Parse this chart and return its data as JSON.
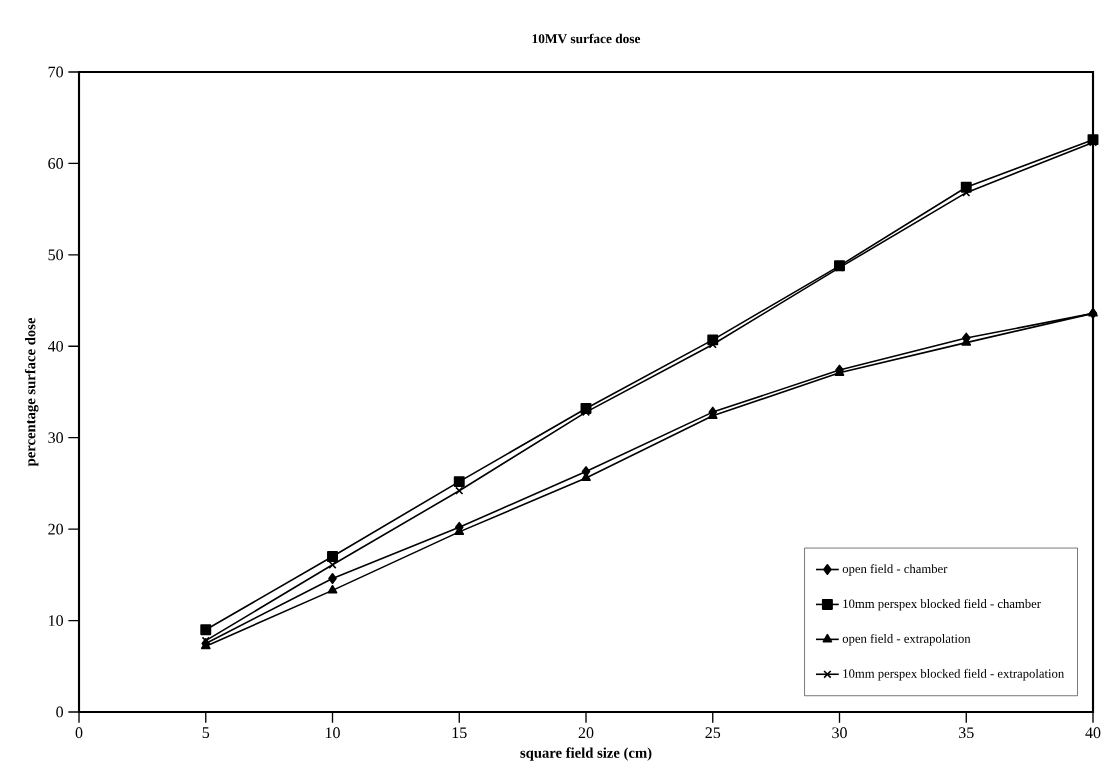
{
  "chart_data": {
    "type": "line",
    "title": "10MV surface dose",
    "xlabel": "square field size (cm)",
    "ylabel": "percentage surface dose",
    "x": [
      5,
      10,
      15,
      20,
      25,
      30,
      35,
      40
    ],
    "series": [
      {
        "name": "open field - chamber",
        "color": "#000000",
        "marker": "diamond",
        "values": [
          7.5,
          14.6,
          20.2,
          26.3,
          32.8,
          37.4,
          40.9,
          43.6
        ]
      },
      {
        "name": "10mm perspex blocked field - chamber",
        "color": "#000000",
        "marker": "square",
        "values": [
          9.0,
          17.0,
          25.2,
          33.2,
          40.7,
          48.8,
          57.4,
          62.6
        ]
      },
      {
        "name": "open field - extrapolation",
        "color": "#000000",
        "marker": "triangle",
        "values": [
          7.2,
          13.3,
          19.7,
          25.6,
          32.4,
          37.1,
          40.4,
          43.6
        ]
      },
      {
        "name": "10mm perspex blocked field - extrapolation",
        "color": "#000000",
        "marker": "cross",
        "values": [
          7.8,
          16.1,
          24.2,
          32.8,
          40.2,
          48.6,
          56.8,
          62.3
        ]
      }
    ],
    "xlim": [
      0,
      40
    ],
    "xticks": [
      0,
      5,
      10,
      15,
      20,
      25,
      30,
      35,
      40
    ],
    "ylim": [
      0,
      70
    ],
    "yticks": [
      0,
      10,
      20,
      30,
      40,
      50,
      60,
      70
    ],
    "grid": false,
    "legend": "bottom right",
    "line_style": "solid"
  }
}
